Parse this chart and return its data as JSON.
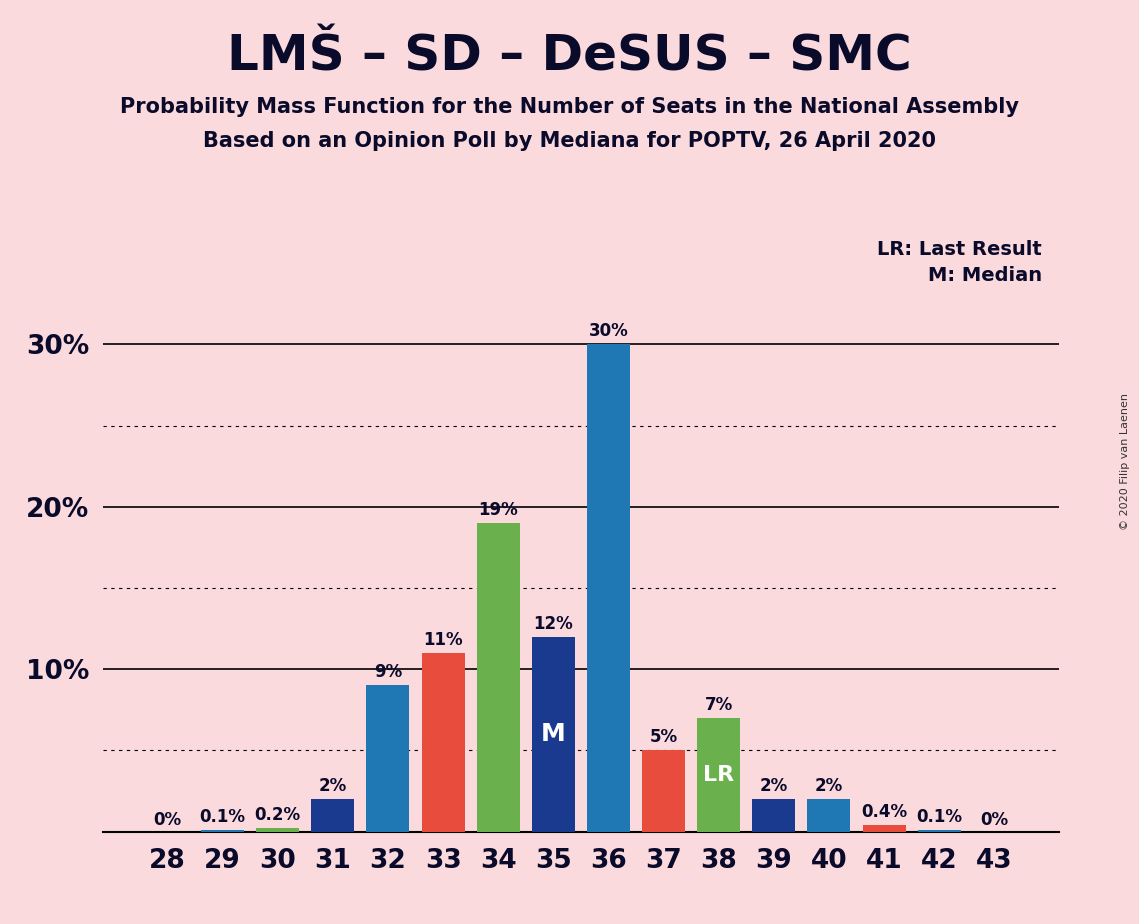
{
  "title": "LMŠ – SD – DeSUS – SMC",
  "subtitle1": "Probability Mass Function for the Number of Seats in the National Assembly",
  "subtitle2": "Based on an Opinion Poll by Mediana for POPTV, 26 April 2020",
  "copyright": "© 2020 Filip van Laenen",
  "legend_lr": "LR: Last Result",
  "legend_m": "M: Median",
  "seats": [
    28,
    29,
    30,
    31,
    32,
    33,
    34,
    35,
    36,
    37,
    38,
    39,
    40,
    41,
    42,
    43
  ],
  "values": [
    0.0,
    0.1,
    0.2,
    2.0,
    9.0,
    11.0,
    19.0,
    12.0,
    30.0,
    5.0,
    7.0,
    2.0,
    2.0,
    0.4,
    0.1,
    0.0
  ],
  "bar_colors": [
    "#1f77b4",
    "#1f77b4",
    "#6ab04c",
    "#1a3a8f",
    "#1f77b4",
    "#e74c3c",
    "#6ab04c",
    "#1a3a8f",
    "#1f77b4",
    "#e74c3c",
    "#6ab04c",
    "#1a3a8f",
    "#1f77b4",
    "#e74c3c",
    "#1f77b4",
    "#1f77b4"
  ],
  "median_seat": 35,
  "last_result_seat": 38,
  "background_color": "#fadadd",
  "ylim": [
    0,
    33
  ],
  "bar_labels": {
    "28": "0%",
    "29": "0.1%",
    "30": "0.2%",
    "31": "2%",
    "32": "9%",
    "33": "11%",
    "34": "19%",
    "35": "12%",
    "36": "30%",
    "37": "5%",
    "38": "7%",
    "39": "2%",
    "40": "2%",
    "41": "0.4%",
    "42": "0.1%",
    "43": "0%"
  },
  "title_fontsize": 36,
  "subtitle_fontsize": 15,
  "tick_fontsize": 19,
  "label_fontsize": 12,
  "legend_fontsize": 14
}
